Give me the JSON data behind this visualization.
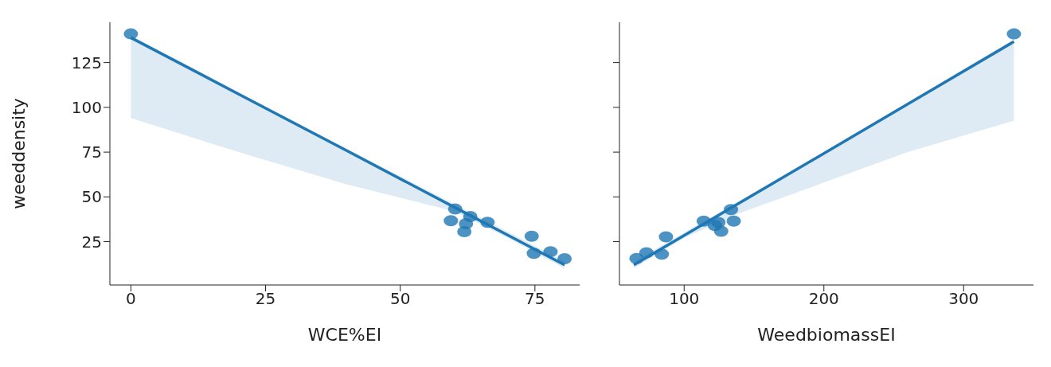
{
  "chart_data": [
    {
      "type": "scatter",
      "xlabel": "WCE%EI",
      "ylabel": "weeddensity",
      "xlim": [
        -3.9,
        83.3
      ],
      "xticks": [
        0,
        25,
        50,
        75
      ],
      "ylim": [
        0.8,
        147.5
      ],
      "yticks": [
        25,
        50,
        75,
        100,
        125
      ],
      "grid": false,
      "series": [
        {
          "marker": "circle",
          "color": "#1f77b4",
          "x": [
            0,
            60.2,
            59.4,
            62.2,
            61.9,
            63,
            66.2,
            74.4,
            74.8,
            77.9,
            80.5
          ],
          "values": [
            141,
            43.2,
            36.7,
            35,
            30.6,
            39,
            35.8,
            28,
            18.5,
            19.4,
            15.5
          ]
        },
        {
          "type": "line",
          "color": "#1f77b4",
          "x": [
            0,
            20,
            40,
            60,
            70,
            80.5
          ],
          "values": [
            138.9,
            107.4,
            75.9,
            44.3,
            28.6,
            12
          ],
          "lower": [
            94,
            75,
            57,
            42,
            27,
            10
          ],
          "upper": [
            140,
            108.5,
            77,
            46,
            30.5,
            14
          ]
        }
      ]
    },
    {
      "type": "scatter",
      "xlabel": "WeedbiomassEI",
      "xlim": [
        53.7,
        350
      ],
      "xticks": [
        100,
        200,
        300
      ],
      "ylim": [
        0.8,
        147.5
      ],
      "yticks": [
        25,
        50,
        75,
        100,
        125
      ],
      "tick_labels": "x",
      "grid": false,
      "series": [
        {
          "marker": "circle",
          "color": "#1f77b4",
          "x": [
            336,
            65.9,
            73,
            84,
            87,
            114,
            124.5,
            126.5,
            133.5,
            135.5,
            122
          ],
          "values": [
            141,
            15.6,
            18.8,
            18,
            27.7,
            36.5,
            35.7,
            30.8,
            42.9,
            36.5,
            34
          ]
        },
        {
          "type": "line",
          "color": "#1f77b4",
          "x": [
            64,
            100,
            140,
            200,
            260,
            336
          ],
          "values": [
            12,
            28.5,
            46.8,
            74.3,
            101.8,
            136.7
          ],
          "lower": [
            10,
            27,
            41,
            58,
            75,
            92.6
          ],
          "upper": [
            14,
            30,
            48,
            75,
            102.5,
            138
          ]
        }
      ]
    }
  ]
}
